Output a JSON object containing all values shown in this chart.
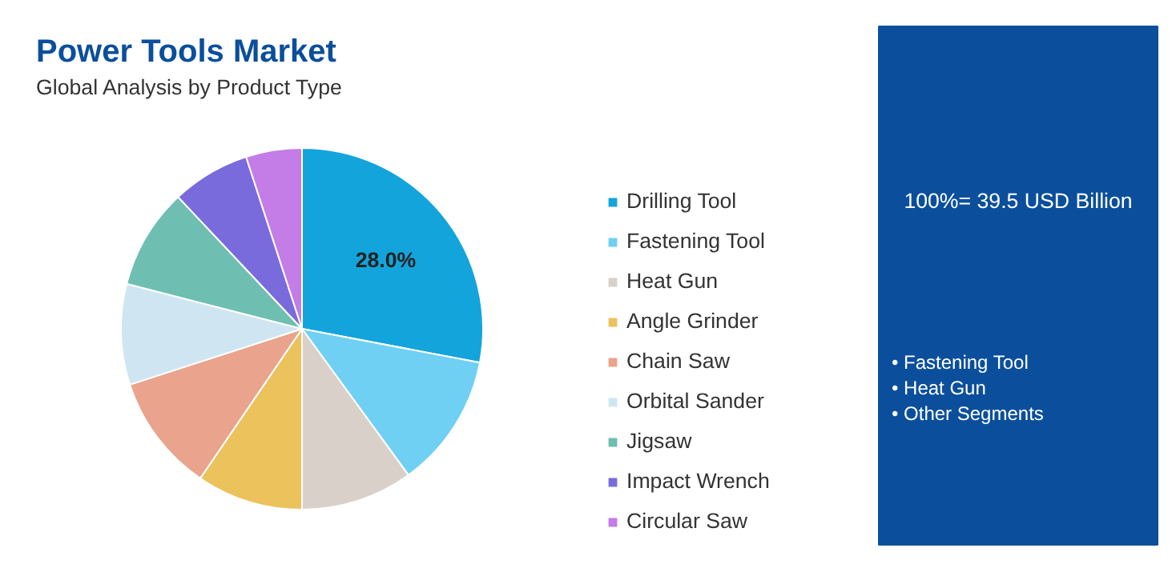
{
  "chart_data": {
    "type": "pie",
    "title": "Power Tools Market",
    "subtitle": "Global Analysis by Product Type",
    "categories": [
      "Drilling Tool",
      "Fastening Tool",
      "Heat Gun",
      "Angle Grinder",
      "Chain Saw",
      "Orbital Sander",
      "Jigsaw",
      "Impact Wrench",
      "Circular Saw"
    ],
    "values": [
      28.0,
      12,
      10,
      9.5,
      10.5,
      9,
      9,
      7,
      5
    ],
    "colors": [
      "#13a4dc",
      "#6fd0f4",
      "#d9d0ca",
      "#ebc25c",
      "#eaa38c",
      "#cfe6f2",
      "#6ebfb1",
      "#7a6bdc",
      "#c47ce6"
    ],
    "value_labels": [
      "28.0%",
      null,
      null,
      null,
      null,
      null,
      null,
      null,
      null
    ],
    "legend": "right",
    "annotations": [
      "100%= 39.5 USD Billion",
      "• Fastening Tool",
      "• Heat Gun",
      "• Other Segments"
    ]
  }
}
